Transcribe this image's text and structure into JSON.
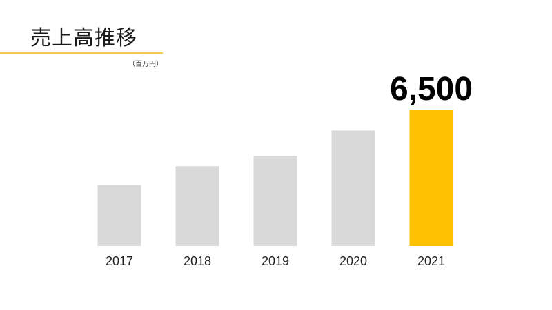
{
  "title": "売上高推移",
  "unit_label": "（百万円）",
  "colors": {
    "accent": "#FFC000",
    "bar_default": "#D9D9D9",
    "rule": "#F2C94C"
  },
  "chart_data": {
    "type": "bar",
    "title": "売上高推移",
    "unit": "（百万円）",
    "categories": [
      "2017",
      "2018",
      "2019",
      "2020",
      "2021"
    ],
    "values": [
      2900,
      3800,
      4300,
      5500,
      6500
    ],
    "highlight_index": 4,
    "data_labels": [
      "",
      "",
      "",
      "",
      "6,500"
    ],
    "ylim": [
      0,
      6500
    ],
    "grid": false,
    "legend": "none"
  }
}
